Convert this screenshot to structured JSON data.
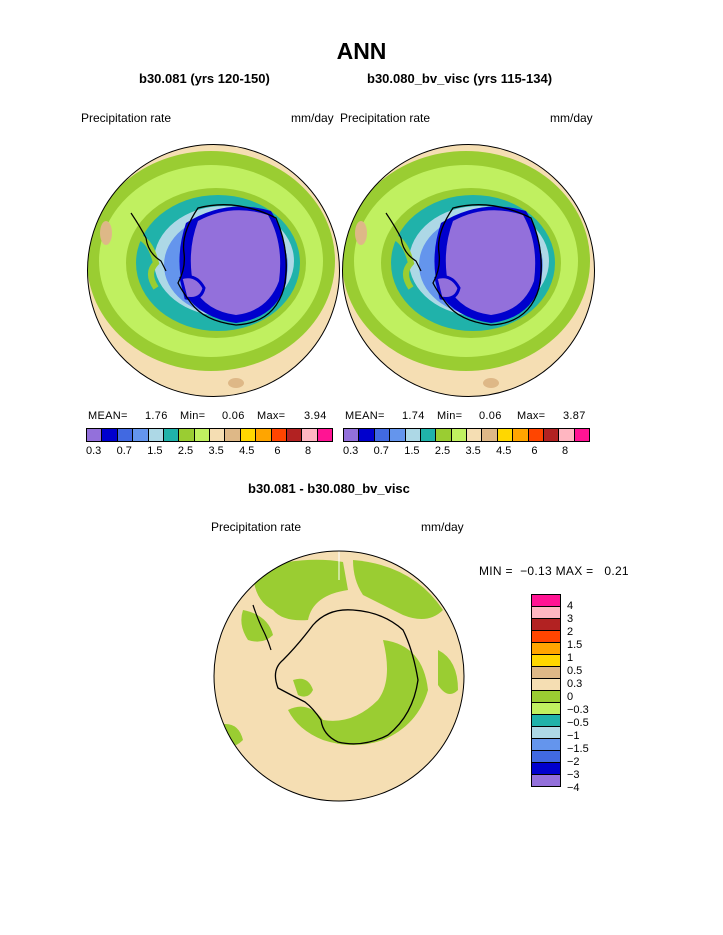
{
  "title": "ANN",
  "panels": [
    {
      "case": "b30.081 (yrs 120-150)",
      "variable": "Precipitation rate",
      "units": "mm/day",
      "stats": {
        "mean_label": "MEAN=",
        "mean": "1.76",
        "min_label": "Min=",
        "min": "0.06",
        "max_label": "Max=",
        "max": "3.94"
      }
    },
    {
      "case": "b30.080_bv_visc (yrs 115-134)",
      "variable": "Precipitation rate",
      "units": "mm/day",
      "stats": {
        "mean_label": "MEAN=",
        "mean": "1.74",
        "min_label": "Min=",
        "min": "0.06",
        "max_label": "Max=",
        "max": "3.87"
      }
    }
  ],
  "colorbar": {
    "colors": [
      "#9370db",
      "#0000cd",
      "#4169e1",
      "#6495ed",
      "#add8e6",
      "#20b2aa",
      "#9acd32",
      "#c0f060",
      "#f5deb3",
      "#deb887",
      "#ffd700",
      "#ffa500",
      "#ff4500",
      "#b22222",
      "#ffb6c1",
      "#ff1493"
    ],
    "labels": [
      "0.3",
      "0.7",
      "1.5",
      "2.5",
      "3.5",
      "4.5",
      "6",
      "8"
    ]
  },
  "diff": {
    "title": "b30.081 - b30.080_bv_visc",
    "variable": "Precipitation rate",
    "units": "mm/day",
    "stats": "MIN =  −0.13 MAX =   0.21",
    "colors": [
      "#ff1493",
      "#ffb6c1",
      "#b22222",
      "#ff4500",
      "#ffa500",
      "#ffd700",
      "#deb887",
      "#f5deb3",
      "#9acd32",
      "#c0f060",
      "#20b2aa",
      "#add8e6",
      "#6495ed",
      "#4169e1",
      "#0000cd",
      "#9370db"
    ],
    "labels": [
      "4",
      "3",
      "2",
      "1.5",
      "1",
      "0.5",
      "0.3",
      "0",
      "−0.3",
      "−0.5",
      "−1",
      "−1.5",
      "−2",
      "−3",
      "−4"
    ]
  }
}
